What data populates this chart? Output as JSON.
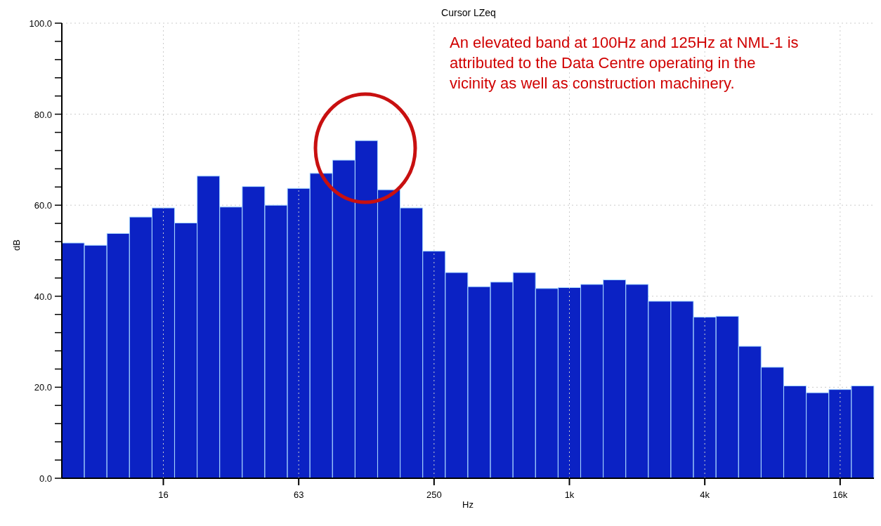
{
  "chart_data": {
    "type": "bar",
    "title": "Cursor LZeq",
    "xlabel": "Hz",
    "ylabel": "dB",
    "categories": [
      null,
      null,
      null,
      null,
      "16",
      null,
      null,
      null,
      null,
      null,
      "63",
      null,
      null,
      null,
      null,
      null,
      "250",
      null,
      null,
      null,
      null,
      null,
      "1k",
      null,
      null,
      null,
      null,
      null,
      "4k",
      null,
      null,
      null,
      null,
      null,
      "16k",
      null
    ],
    "values": [
      51.7,
      51.2,
      53.8,
      57.4,
      59.4,
      56.1,
      66.4,
      59.6,
      64.1,
      60.0,
      63.7,
      67.0,
      69.9,
      74.2,
      63.4,
      59.4,
      49.9,
      45.2,
      42.1,
      43.1,
      45.2,
      41.7,
      41.9,
      42.6,
      43.6,
      42.6,
      38.9,
      38.9,
      35.4,
      35.6,
      29.0,
      24.4,
      20.3,
      18.8,
      19.5,
      20.3
    ],
    "color": "#0b22c4",
    "ylim": [
      0,
      100
    ],
    "yticks": [
      {
        "value": 0,
        "label": "0.0"
      },
      {
        "value": 4,
        "label": null
      },
      {
        "value": 8,
        "label": null
      },
      {
        "value": 12,
        "label": null
      },
      {
        "value": 16,
        "label": null
      },
      {
        "value": 20,
        "label": "20.0"
      },
      {
        "value": 24,
        "label": null
      },
      {
        "value": 28,
        "label": null
      },
      {
        "value": 32,
        "label": null
      },
      {
        "value": 36,
        "label": null
      },
      {
        "value": 40,
        "label": "40.0"
      },
      {
        "value": 44,
        "label": null
      },
      {
        "value": 48,
        "label": null
      },
      {
        "value": 52,
        "label": null
      },
      {
        "value": 56,
        "label": null
      },
      {
        "value": 60,
        "label": "60.0"
      },
      {
        "value": 64,
        "label": null
      },
      {
        "value": 68,
        "label": null
      },
      {
        "value": 72,
        "label": null
      },
      {
        "value": 76,
        "label": null
      },
      {
        "value": 80,
        "label": "80.0"
      },
      {
        "value": 84,
        "label": null
      },
      {
        "value": 88,
        "label": null
      },
      {
        "value": 92,
        "label": null
      },
      {
        "value": 96,
        "label": null
      },
      {
        "value": 100,
        "label": "100.0"
      }
    ],
    "grid": true,
    "annotations": [
      "An elevated band at 100Hz and 125Hz at NML-1 is attributed to the Data Centre operating in the vicinity as well as construction machinery."
    ]
  }
}
